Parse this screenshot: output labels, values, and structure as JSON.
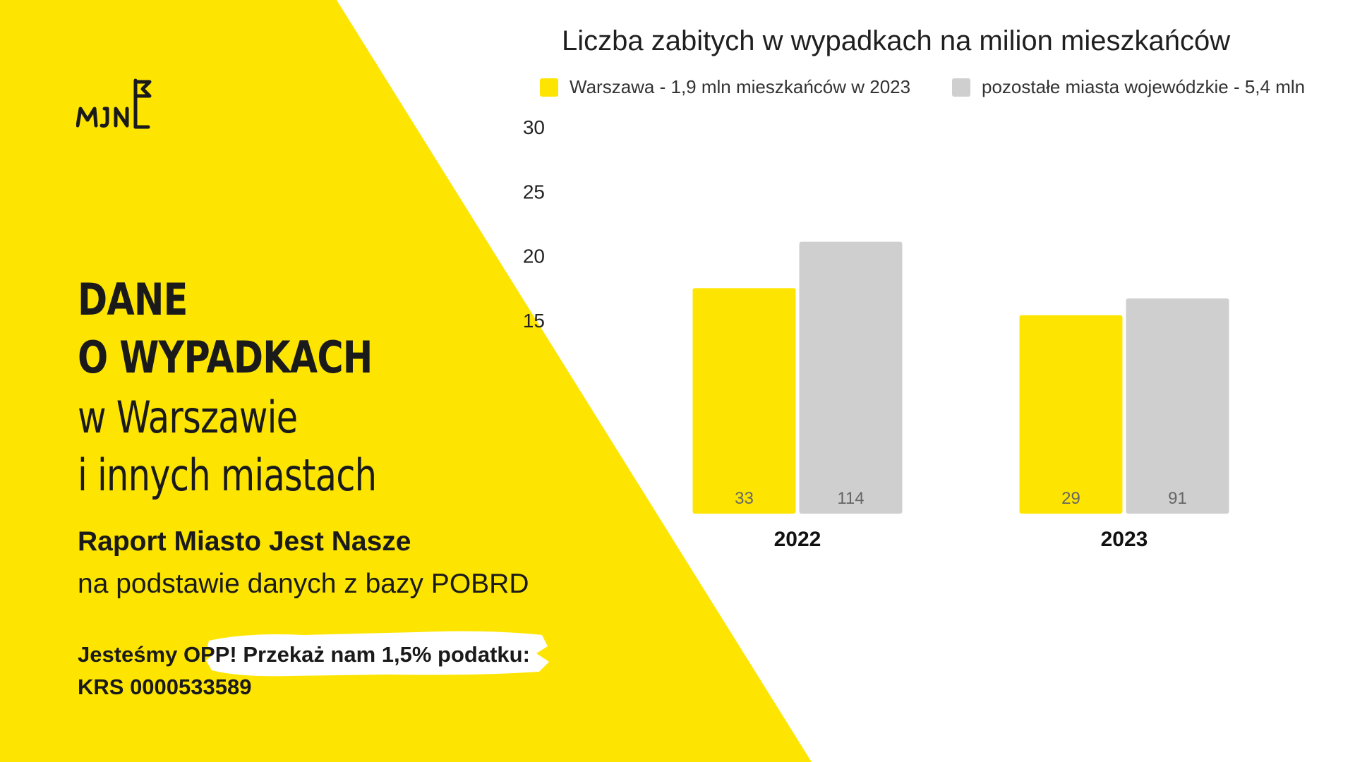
{
  "brand": {
    "logo_text": "MJN",
    "yellow": "#FDE501",
    "grey": "#CFCFCF",
    "text_dark": "#1A1A1A"
  },
  "headline": {
    "line1": "DANE",
    "line2": "O WYPADKACH",
    "line3": "w Warszawie",
    "line4": "i innych miastach"
  },
  "report": {
    "title": "Raport Miasto Jest Nasze",
    "source": "na podstawie danych z bazy POBRD"
  },
  "donation": {
    "prefix": "Jesteśmy OPP! ",
    "highlight": "Przekaż nam 1,5% podatku:",
    "krs": "KRS 0000533589"
  },
  "chart_data": {
    "type": "bar",
    "title": "Liczba zabitych w wypadkach na milion mieszkańców",
    "categories": [
      "2022",
      "2023"
    ],
    "series": [
      {
        "name": "Warszawa - 1,9 mln mieszkańców w 2023",
        "color": "#FDE501",
        "values": [
          17.5,
          15.4
        ],
        "labels": [
          "33",
          "29"
        ]
      },
      {
        "name": "pozostałe miasta wojewódzkie - 5,4 mln",
        "color": "#CFCFCF",
        "values": [
          21.1,
          16.7
        ],
        "labels": [
          "114",
          "91"
        ]
      }
    ],
    "yticks": [
      15,
      20,
      25,
      30
    ],
    "ylim": [
      0,
      30
    ],
    "grid": false,
    "legend_position": "top"
  }
}
